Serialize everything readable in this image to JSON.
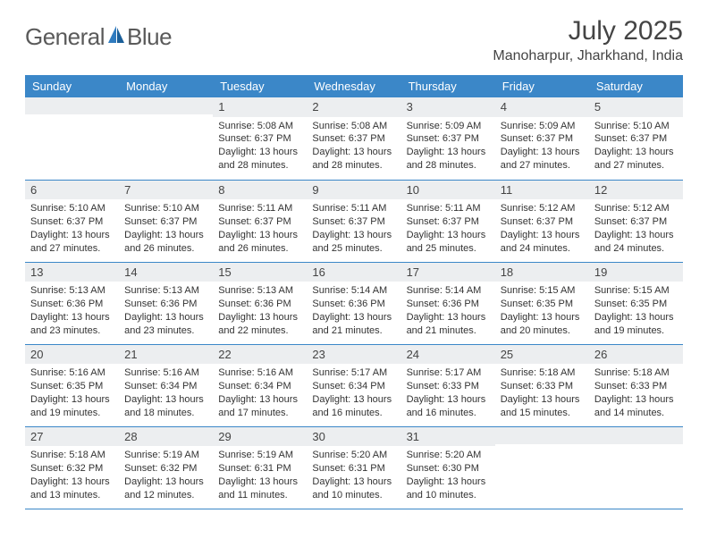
{
  "brand": {
    "prefix": "General",
    "suffix": "Blue"
  },
  "title": "July 2025",
  "location": "Manoharpur, Jharkhand, India",
  "colors": {
    "header_bg": "#3b87c8",
    "header_text": "#ffffff",
    "daynum_bg": "#eceef0",
    "rule": "#3b87c8",
    "logo_grey": "#5a5a5a",
    "logo_blue": "#2f7bbf",
    "text": "#333333"
  },
  "daysOfWeek": [
    "Sunday",
    "Monday",
    "Tuesday",
    "Wednesday",
    "Thursday",
    "Friday",
    "Saturday"
  ],
  "weeks": [
    [
      null,
      null,
      {
        "n": "1",
        "sr": "5:08 AM",
        "ss": "6:37 PM",
        "dl": "13 hours and 28 minutes."
      },
      {
        "n": "2",
        "sr": "5:08 AM",
        "ss": "6:37 PM",
        "dl": "13 hours and 28 minutes."
      },
      {
        "n": "3",
        "sr": "5:09 AM",
        "ss": "6:37 PM",
        "dl": "13 hours and 28 minutes."
      },
      {
        "n": "4",
        "sr": "5:09 AM",
        "ss": "6:37 PM",
        "dl": "13 hours and 27 minutes."
      },
      {
        "n": "5",
        "sr": "5:10 AM",
        "ss": "6:37 PM",
        "dl": "13 hours and 27 minutes."
      }
    ],
    [
      {
        "n": "6",
        "sr": "5:10 AM",
        "ss": "6:37 PM",
        "dl": "13 hours and 27 minutes."
      },
      {
        "n": "7",
        "sr": "5:10 AM",
        "ss": "6:37 PM",
        "dl": "13 hours and 26 minutes."
      },
      {
        "n": "8",
        "sr": "5:11 AM",
        "ss": "6:37 PM",
        "dl": "13 hours and 26 minutes."
      },
      {
        "n": "9",
        "sr": "5:11 AM",
        "ss": "6:37 PM",
        "dl": "13 hours and 25 minutes."
      },
      {
        "n": "10",
        "sr": "5:11 AM",
        "ss": "6:37 PM",
        "dl": "13 hours and 25 minutes."
      },
      {
        "n": "11",
        "sr": "5:12 AM",
        "ss": "6:37 PM",
        "dl": "13 hours and 24 minutes."
      },
      {
        "n": "12",
        "sr": "5:12 AM",
        "ss": "6:37 PM",
        "dl": "13 hours and 24 minutes."
      }
    ],
    [
      {
        "n": "13",
        "sr": "5:13 AM",
        "ss": "6:36 PM",
        "dl": "13 hours and 23 minutes."
      },
      {
        "n": "14",
        "sr": "5:13 AM",
        "ss": "6:36 PM",
        "dl": "13 hours and 23 minutes."
      },
      {
        "n": "15",
        "sr": "5:13 AM",
        "ss": "6:36 PM",
        "dl": "13 hours and 22 minutes."
      },
      {
        "n": "16",
        "sr": "5:14 AM",
        "ss": "6:36 PM",
        "dl": "13 hours and 21 minutes."
      },
      {
        "n": "17",
        "sr": "5:14 AM",
        "ss": "6:36 PM",
        "dl": "13 hours and 21 minutes."
      },
      {
        "n": "18",
        "sr": "5:15 AM",
        "ss": "6:35 PM",
        "dl": "13 hours and 20 minutes."
      },
      {
        "n": "19",
        "sr": "5:15 AM",
        "ss": "6:35 PM",
        "dl": "13 hours and 19 minutes."
      }
    ],
    [
      {
        "n": "20",
        "sr": "5:16 AM",
        "ss": "6:35 PM",
        "dl": "13 hours and 19 minutes."
      },
      {
        "n": "21",
        "sr": "5:16 AM",
        "ss": "6:34 PM",
        "dl": "13 hours and 18 minutes."
      },
      {
        "n": "22",
        "sr": "5:16 AM",
        "ss": "6:34 PM",
        "dl": "13 hours and 17 minutes."
      },
      {
        "n": "23",
        "sr": "5:17 AM",
        "ss": "6:34 PM",
        "dl": "13 hours and 16 minutes."
      },
      {
        "n": "24",
        "sr": "5:17 AM",
        "ss": "6:33 PM",
        "dl": "13 hours and 16 minutes."
      },
      {
        "n": "25",
        "sr": "5:18 AM",
        "ss": "6:33 PM",
        "dl": "13 hours and 15 minutes."
      },
      {
        "n": "26",
        "sr": "5:18 AM",
        "ss": "6:33 PM",
        "dl": "13 hours and 14 minutes."
      }
    ],
    [
      {
        "n": "27",
        "sr": "5:18 AM",
        "ss": "6:32 PM",
        "dl": "13 hours and 13 minutes."
      },
      {
        "n": "28",
        "sr": "5:19 AM",
        "ss": "6:32 PM",
        "dl": "13 hours and 12 minutes."
      },
      {
        "n": "29",
        "sr": "5:19 AM",
        "ss": "6:31 PM",
        "dl": "13 hours and 11 minutes."
      },
      {
        "n": "30",
        "sr": "5:20 AM",
        "ss": "6:31 PM",
        "dl": "13 hours and 10 minutes."
      },
      {
        "n": "31",
        "sr": "5:20 AM",
        "ss": "6:30 PM",
        "dl": "13 hours and 10 minutes."
      },
      null,
      null
    ]
  ],
  "labels": {
    "sunrise": "Sunrise: ",
    "sunset": "Sunset: ",
    "daylight": "Daylight: "
  }
}
